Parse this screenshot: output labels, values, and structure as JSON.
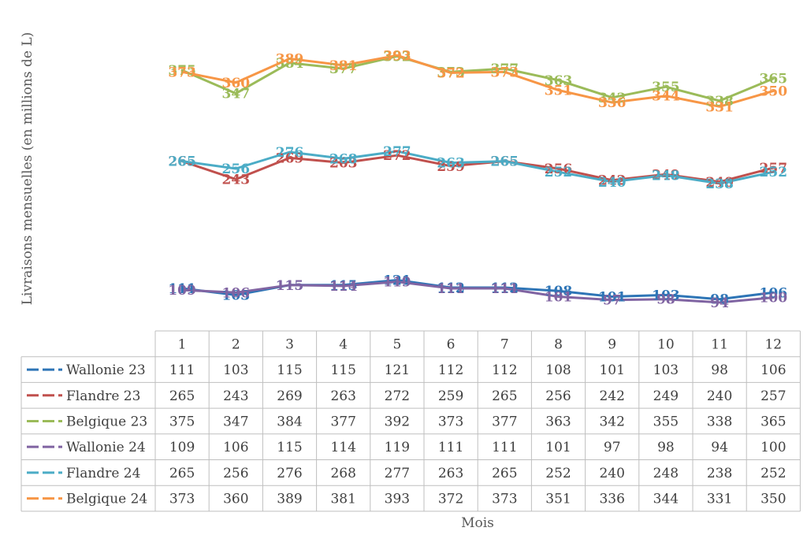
{
  "chart_data": {
    "type": "line",
    "title": "",
    "xlabel": "Mois",
    "ylabel": "Livraisons mensuelles (en millions de L)",
    "ylim": [
      60,
      400
    ],
    "categories": [
      "1",
      "2",
      "3",
      "4",
      "5",
      "6",
      "7",
      "8",
      "9",
      "10",
      "11",
      "12"
    ],
    "legend": "data-table",
    "grid": false,
    "series": [
      {
        "name": "Wallonie 23",
        "color": "#2E75B6",
        "values": [
          111,
          103,
          115,
          115,
          121,
          112,
          112,
          108,
          101,
          103,
          98,
          106
        ]
      },
      {
        "name": "Flandre 23",
        "color": "#C0504D",
        "values": [
          265,
          243,
          269,
          263,
          272,
          259,
          265,
          256,
          242,
          249,
          240,
          257
        ]
      },
      {
        "name": "Belgique 23",
        "color": "#9BBB59",
        "values": [
          375,
          347,
          384,
          377,
          392,
          373,
          377,
          363,
          342,
          355,
          338,
          365
        ]
      },
      {
        "name": "Wallonie 24",
        "color": "#8064A2",
        "values": [
          109,
          106,
          115,
          114,
          119,
          111,
          111,
          101,
          97,
          98,
          94,
          100
        ]
      },
      {
        "name": "Flandre 24",
        "color": "#4BACC6",
        "values": [
          265,
          256,
          276,
          268,
          277,
          263,
          265,
          252,
          240,
          248,
          238,
          252
        ]
      },
      {
        "name": "Belgique 24",
        "color": "#F79646",
        "values": [
          373,
          360,
          389,
          381,
          393,
          372,
          373,
          351,
          336,
          344,
          331,
          350
        ]
      }
    ]
  }
}
